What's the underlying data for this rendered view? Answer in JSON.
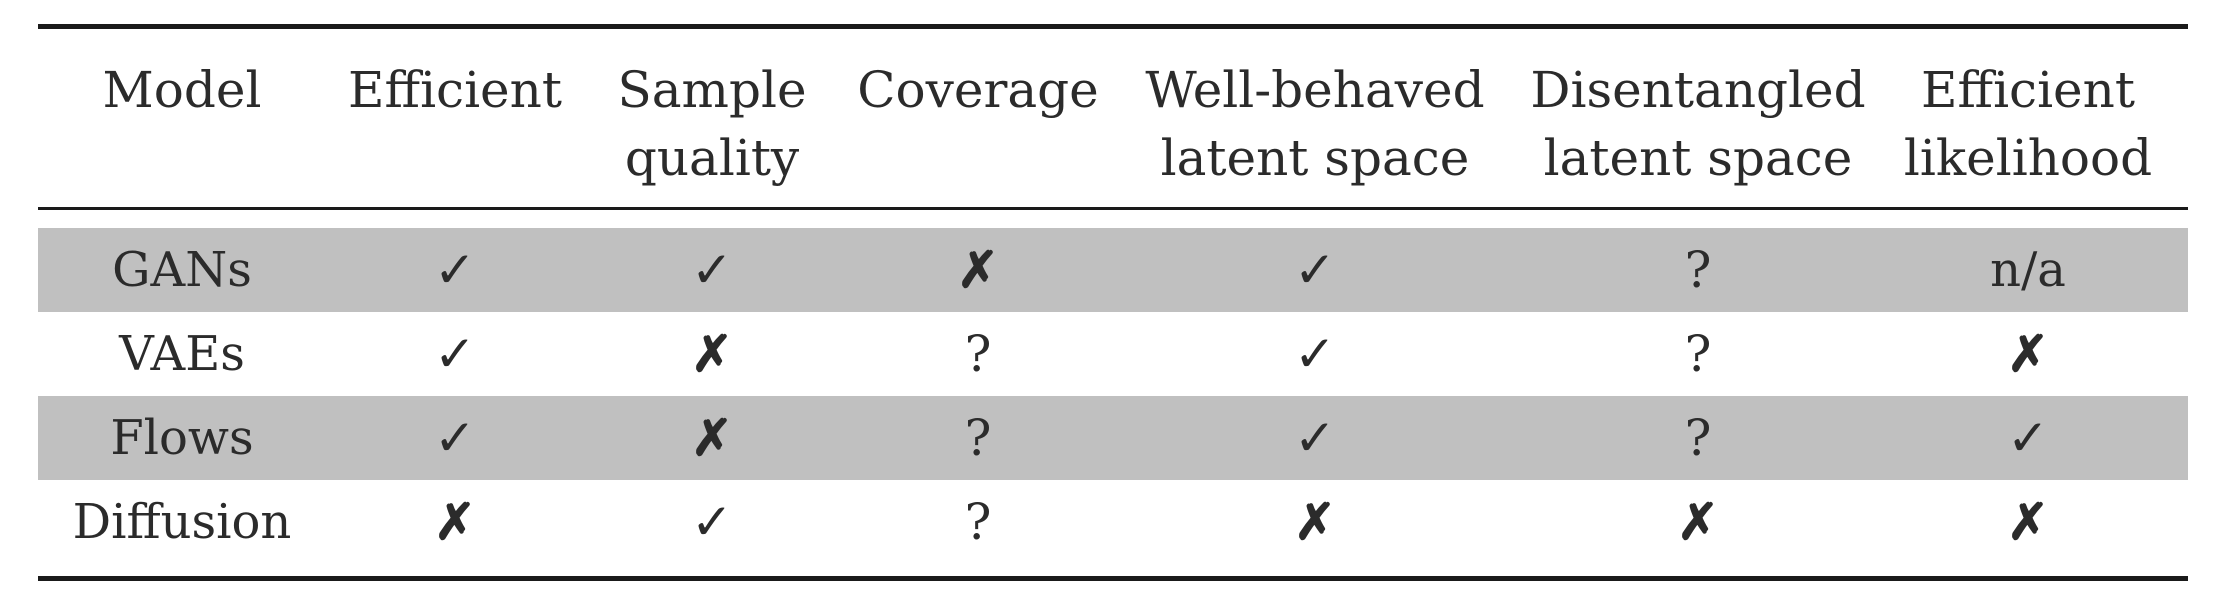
{
  "columns": [
    {
      "id": "model",
      "lines": [
        "Model"
      ]
    },
    {
      "id": "efficient",
      "lines": [
        "Efficient"
      ]
    },
    {
      "id": "sample_quality",
      "lines": [
        "Sample",
        "quality"
      ]
    },
    {
      "id": "coverage",
      "lines": [
        "Coverage"
      ]
    },
    {
      "id": "well_behaved",
      "lines": [
        "Well-behaved",
        "latent space"
      ]
    },
    {
      "id": "disentangled",
      "lines": [
        "Disentangled",
        "latent space"
      ]
    },
    {
      "id": "efficient_likelihood",
      "lines": [
        "Efficient",
        "likelihood"
      ]
    }
  ],
  "rows": [
    {
      "model": "GANs",
      "shaded": true,
      "cells": [
        "✓",
        "✓",
        "✗",
        "✓",
        "?",
        "n/a"
      ]
    },
    {
      "model": "VAEs",
      "shaded": false,
      "cells": [
        "✓",
        "✗",
        "?",
        "✓",
        "?",
        "✗"
      ]
    },
    {
      "model": "Flows",
      "shaded": true,
      "cells": [
        "✓",
        "✗",
        "?",
        "✓",
        "?",
        "✓"
      ]
    },
    {
      "model": "Diffusion",
      "shaded": false,
      "cells": [
        "✗",
        "✓",
        "?",
        "✗",
        "✗",
        "✗"
      ]
    }
  ]
}
